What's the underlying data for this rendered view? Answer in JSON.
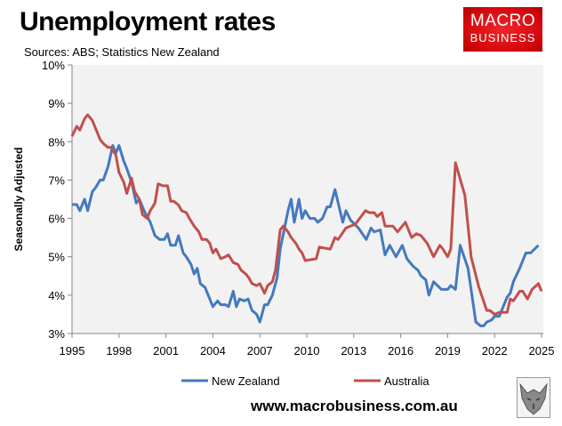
{
  "header": {
    "title": "Unemployment rates",
    "subtitle": "Sources: ABS; Statistics New Zealand"
  },
  "logo": {
    "line1": "MACRO",
    "line2": "BUSINESS"
  },
  "footer": {
    "url": "www.macrobusiness.com.au"
  },
  "chart_data": {
    "type": "line",
    "title": "Unemployment rates",
    "ylabel": "Seasonally Adjusted",
    "xlabel": "",
    "xlim": [
      1995,
      2025
    ],
    "ylim": [
      3,
      10
    ],
    "xticks": [
      "1995",
      "1998",
      "2001",
      "2004",
      "2007",
      "2010",
      "2013",
      "2016",
      "2019",
      "2022",
      "2025"
    ],
    "yticks": [
      "3%",
      "4%",
      "5%",
      "6%",
      "7%",
      "8%",
      "9%",
      "10%"
    ],
    "grid": false,
    "legend": "bottom",
    "colors": {
      "plot_bg": "#f2f2f2",
      "new_zealand": "#4479bd",
      "australia": "#c0504d"
    },
    "series": [
      {
        "name": "New Zealand",
        "color": "#4479bd",
        "points": [
          [
            1995,
            6.36
          ],
          [
            1995.3,
            6.36
          ],
          [
            1995.5,
            6.2
          ],
          [
            1995.8,
            6.5
          ],
          [
            1996.0,
            6.2
          ],
          [
            1996.3,
            6.7
          ],
          [
            1996.5,
            6.8
          ],
          [
            1996.8,
            7.0
          ],
          [
            1997.0,
            7.0
          ],
          [
            1997.3,
            7.35
          ],
          [
            1997.6,
            7.9
          ],
          [
            1997.8,
            7.7
          ],
          [
            1998.0,
            7.9
          ],
          [
            1998.3,
            7.5
          ],
          [
            1998.5,
            7.3
          ],
          [
            1998.8,
            6.95
          ],
          [
            1999.1,
            6.4
          ],
          [
            1999.3,
            6.5
          ],
          [
            1999.6,
            6.2
          ],
          [
            2000.0,
            5.9
          ],
          [
            2000.3,
            5.55
          ],
          [
            2000.6,
            5.45
          ],
          [
            2000.9,
            5.45
          ],
          [
            2001.1,
            5.6
          ],
          [
            2001.3,
            5.3
          ],
          [
            2001.6,
            5.3
          ],
          [
            2001.8,
            5.55
          ],
          [
            2002.1,
            5.1
          ],
          [
            2002.3,
            5.0
          ],
          [
            2002.6,
            4.8
          ],
          [
            2002.8,
            4.55
          ],
          [
            2003.0,
            4.7
          ],
          [
            2003.2,
            4.3
          ],
          [
            2003.5,
            4.2
          ],
          [
            2003.8,
            3.9
          ],
          [
            2004.0,
            3.7
          ],
          [
            2004.3,
            3.85
          ],
          [
            2004.5,
            3.75
          ],
          [
            2004.8,
            3.75
          ],
          [
            2005.0,
            3.7
          ],
          [
            2005.3,
            4.1
          ],
          [
            2005.5,
            3.7
          ],
          [
            2005.7,
            3.9
          ],
          [
            2006.0,
            3.85
          ],
          [
            2006.25,
            3.9
          ],
          [
            2006.5,
            3.6
          ],
          [
            2006.8,
            3.5
          ],
          [
            2007.0,
            3.3
          ],
          [
            2007.3,
            3.75
          ],
          [
            2007.5,
            3.75
          ],
          [
            2007.8,
            4.0
          ],
          [
            2008.1,
            4.45
          ],
          [
            2008.3,
            5.2
          ],
          [
            2008.6,
            5.8
          ],
          [
            2008.8,
            6.2
          ],
          [
            2009.0,
            6.5
          ],
          [
            2009.2,
            5.9
          ],
          [
            2009.5,
            6.5
          ],
          [
            2009.7,
            6.0
          ],
          [
            2009.9,
            6.2
          ],
          [
            2010.2,
            6.0
          ],
          [
            2010.5,
            6.0
          ],
          [
            2010.7,
            5.9
          ],
          [
            2011.0,
            6.0
          ],
          [
            2011.3,
            6.3
          ],
          [
            2011.5,
            6.3
          ],
          [
            2011.8,
            6.75
          ],
          [
            2012.3,
            5.9
          ],
          [
            2012.5,
            6.2
          ],
          [
            2012.8,
            5.95
          ],
          [
            2013.3,
            5.75
          ],
          [
            2013.8,
            5.45
          ],
          [
            2014.1,
            5.75
          ],
          [
            2014.3,
            5.65
          ],
          [
            2014.7,
            5.7
          ],
          [
            2015.0,
            5.05
          ],
          [
            2015.3,
            5.3
          ],
          [
            2015.7,
            5.0
          ],
          [
            2016.1,
            5.3
          ],
          [
            2016.4,
            4.95
          ],
          [
            2016.8,
            4.75
          ],
          [
            2017.1,
            4.65
          ],
          [
            2017.3,
            4.5
          ],
          [
            2017.6,
            4.4
          ],
          [
            2017.8,
            4.0
          ],
          [
            2018.1,
            4.35
          ],
          [
            2018.6,
            4.15
          ],
          [
            2019.0,
            4.15
          ],
          [
            2019.2,
            4.25
          ],
          [
            2019.5,
            4.15
          ],
          [
            2019.8,
            5.3
          ],
          [
            2020.3,
            4.7
          ],
          [
            2020.8,
            3.3
          ],
          [
            2021.1,
            3.2
          ],
          [
            2021.3,
            3.2
          ],
          [
            2021.5,
            3.3
          ],
          [
            2021.8,
            3.35
          ],
          [
            2022.0,
            3.45
          ],
          [
            2022.3,
            3.45
          ],
          [
            2022.8,
            3.95
          ],
          [
            2023.0,
            4.05
          ],
          [
            2023.2,
            4.35
          ],
          [
            2023.6,
            4.7
          ],
          [
            2024.0,
            5.1
          ],
          [
            2024.3,
            5.1
          ],
          [
            2024.8,
            5.3
          ]
        ]
      },
      {
        "name": "Australia",
        "color": "#c0504d",
        "points": [
          [
            1995,
            8.14
          ],
          [
            1995.3,
            8.4
          ],
          [
            1995.5,
            8.3
          ],
          [
            1995.8,
            8.6
          ],
          [
            1996.0,
            8.7
          ],
          [
            1996.3,
            8.55
          ],
          [
            1996.5,
            8.35
          ],
          [
            1996.8,
            8.05
          ],
          [
            1997.0,
            7.95
          ],
          [
            1997.3,
            7.85
          ],
          [
            1997.5,
            7.85
          ],
          [
            1997.8,
            7.65
          ],
          [
            1998.0,
            7.2
          ],
          [
            1998.3,
            6.95
          ],
          [
            1998.5,
            6.65
          ],
          [
            1998.8,
            7.05
          ],
          [
            1999.0,
            6.7
          ],
          [
            1999.3,
            6.5
          ],
          [
            1999.5,
            6.1
          ],
          [
            1999.8,
            6.0
          ],
          [
            2000.0,
            6.2
          ],
          [
            2000.3,
            6.4
          ],
          [
            2000.5,
            6.9
          ],
          [
            2000.8,
            6.85
          ],
          [
            2001.1,
            6.85
          ],
          [
            2001.3,
            6.45
          ],
          [
            2001.5,
            6.45
          ],
          [
            2001.8,
            6.35
          ],
          [
            2002.0,
            6.2
          ],
          [
            2002.3,
            6.15
          ],
          [
            2002.5,
            6.0
          ],
          [
            2002.8,
            5.8
          ],
          [
            2003.1,
            5.65
          ],
          [
            2003.3,
            5.45
          ],
          [
            2003.6,
            5.45
          ],
          [
            2003.8,
            5.35
          ],
          [
            2004.0,
            5.1
          ],
          [
            2004.2,
            5.2
          ],
          [
            2004.5,
            4.95
          ],
          [
            2004.8,
            5.0
          ],
          [
            2005.0,
            5.05
          ],
          [
            2005.3,
            4.85
          ],
          [
            2005.6,
            4.8
          ],
          [
            2005.8,
            4.65
          ],
          [
            2006.1,
            4.55
          ],
          [
            2006.3,
            4.45
          ],
          [
            2006.5,
            4.3
          ],
          [
            2006.8,
            4.25
          ],
          [
            2007.0,
            4.3
          ],
          [
            2007.3,
            4.05
          ],
          [
            2007.5,
            4.25
          ],
          [
            2007.8,
            4.35
          ],
          [
            2008.0,
            4.65
          ],
          [
            2008.3,
            5.7
          ],
          [
            2008.5,
            5.8
          ],
          [
            2008.8,
            5.65
          ],
          [
            2009.0,
            5.5
          ],
          [
            2009.3,
            5.35
          ],
          [
            2009.5,
            5.2
          ],
          [
            2009.7,
            5.1
          ],
          [
            2009.9,
            4.9
          ],
          [
            2010.6,
            4.95
          ],
          [
            2010.8,
            5.25
          ],
          [
            2011.5,
            5.2
          ],
          [
            2011.8,
            5.5
          ],
          [
            2012.0,
            5.45
          ],
          [
            2012.5,
            5.75
          ],
          [
            2013.1,
            5.85
          ],
          [
            2013.75,
            6.2
          ],
          [
            2014.0,
            6.15
          ],
          [
            2014.3,
            6.15
          ],
          [
            2014.5,
            6.05
          ],
          [
            2014.8,
            6.15
          ],
          [
            2015.0,
            5.8
          ],
          [
            2015.5,
            5.8
          ],
          [
            2015.8,
            5.65
          ],
          [
            2016.3,
            5.9
          ],
          [
            2016.7,
            5.5
          ],
          [
            2017.0,
            5.6
          ],
          [
            2017.3,
            5.55
          ],
          [
            2017.7,
            5.35
          ],
          [
            2018.1,
            5.0
          ],
          [
            2018.5,
            5.3
          ],
          [
            2018.7,
            5.2
          ],
          [
            2019.0,
            5.0
          ],
          [
            2019.2,
            5.2
          ],
          [
            2019.5,
            7.45
          ],
          [
            2020.1,
            6.6
          ],
          [
            2020.5,
            5.0
          ],
          [
            2021.0,
            4.2
          ],
          [
            2021.5,
            3.6
          ],
          [
            2021.7,
            3.6
          ],
          [
            2022.0,
            3.5
          ],
          [
            2022.3,
            3.55
          ],
          [
            2022.8,
            3.55
          ],
          [
            2023.0,
            3.9
          ],
          [
            2023.2,
            3.85
          ],
          [
            2023.6,
            4.1
          ],
          [
            2023.8,
            4.1
          ],
          [
            2024.1,
            3.9
          ],
          [
            2024.4,
            4.15
          ],
          [
            2024.8,
            4.3
          ],
          [
            2025.0,
            4.1
          ]
        ]
      }
    ]
  }
}
